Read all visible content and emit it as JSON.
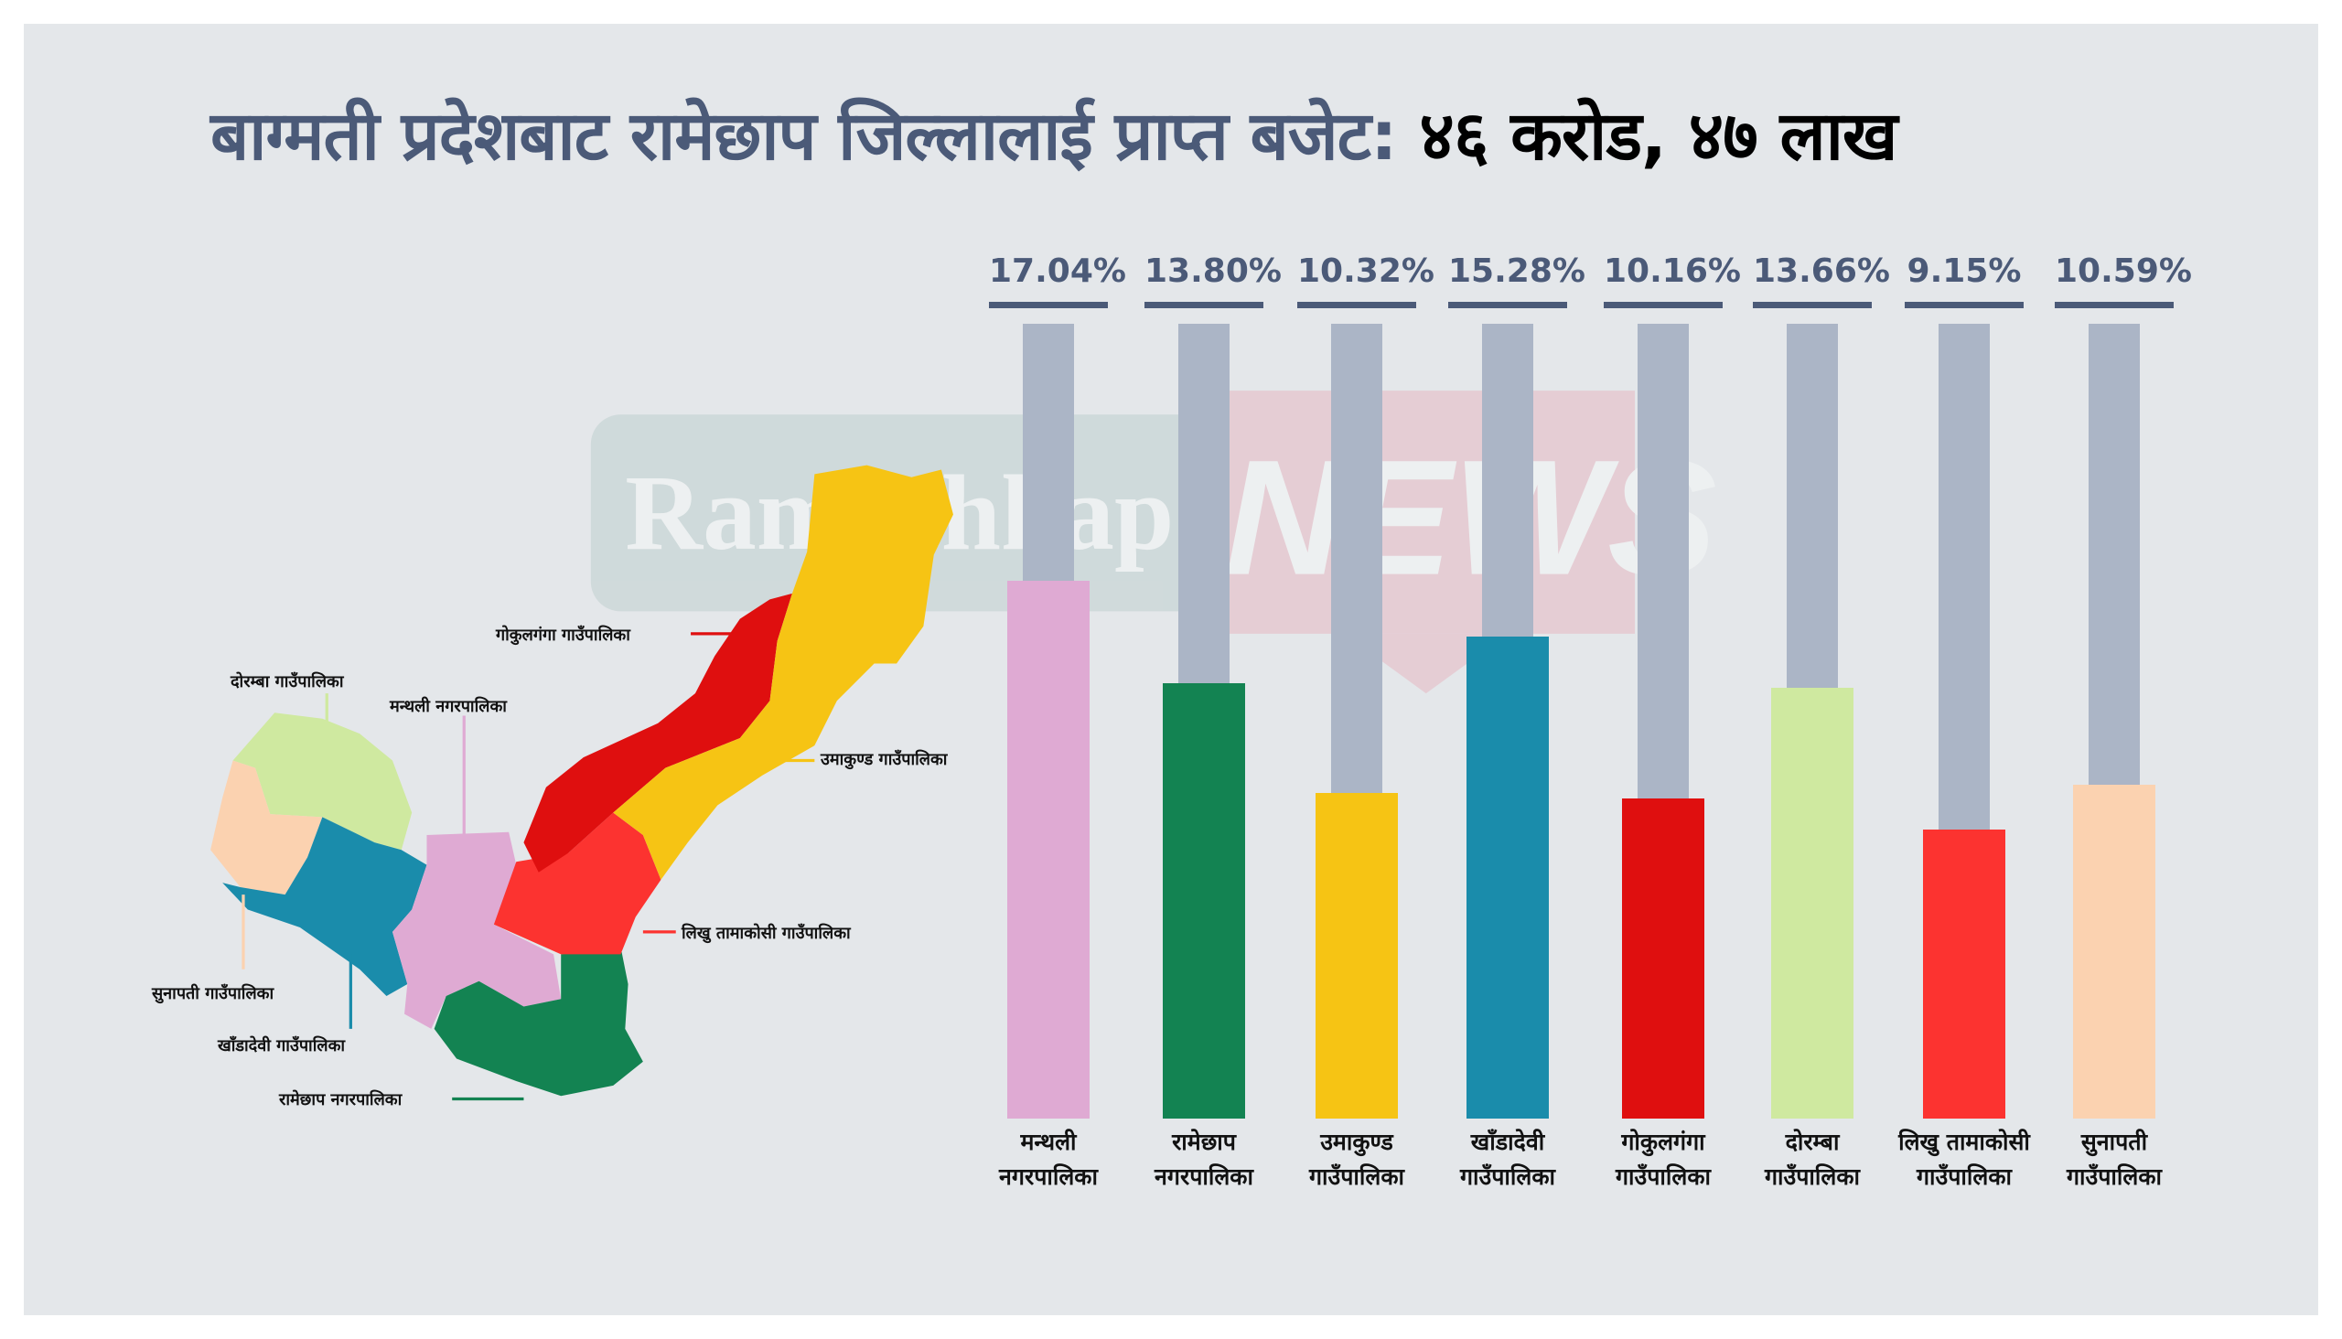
{
  "title": {
    "main": "बाग्मती प्रदेशबाट रामेछाप जिल्लालाई प्राप्त बजेट:",
    "amount": "४६ करोड, ४७ लाख"
  },
  "watermark": {
    "part1": "Ramechhap",
    "part2": "NEWS"
  },
  "chart_data": {
    "type": "bar",
    "title": "बाग्मती प्रदेशबाट रामेछाप जिल्लालाई प्राप्त बजेट: ४६ करोड, ४७ लाख",
    "categories": [
      {
        "line1": "मन्थली",
        "line2": "नगरपालिका"
      },
      {
        "line1": "रामेछाप",
        "line2": "नगरपालिका"
      },
      {
        "line1": "उमाकुण्ड",
        "line2": "गाउँपालिका"
      },
      {
        "line1": "खाँडादेवी",
        "line2": "गाउँपालिका"
      },
      {
        "line1": "गोकुलगंगा",
        "line2": "गाउँपालिका"
      },
      {
        "line1": "दोरम्बा",
        "line2": "गाउँपालिका"
      },
      {
        "line1": "लिखु तामाकोसी",
        "line2": "गाउँपालिका"
      },
      {
        "line1": "सुनापती",
        "line2": "गाउँपालिका"
      }
    ],
    "values": [
      17.04,
      13.8,
      10.32,
      15.28,
      10.16,
      13.66,
      9.15,
      10.59
    ],
    "labels": [
      "17.04%",
      "13.80%",
      "10.32%",
      "15.28%",
      "10.16%",
      "13.66%",
      "9.15%",
      "10.59%"
    ],
    "colors": [
      "#dfaad3",
      "#138352",
      "#f6c414",
      "#1a8cab",
      "#df0f0f",
      "#cfe9a0",
      "#fc3330",
      "#fbd2b0"
    ],
    "ymax": 25.2,
    "unit": "%"
  },
  "map_labels": {
    "gokulganga": "गोकुलगंगा गाउँपालिका",
    "doramba": "दोरम्बा गाउँपालिका",
    "manthali": "मन्थली नगरपालिका",
    "umakunda": "उमाकुण्ड गाउँपालिका",
    "likhu": "लिखु तामाकोसी गाउँपालिका",
    "sunapati": "सुनापती गाउँपालिका",
    "khadadevi": "खाँडादेवी गाउँपालिका",
    "ramechhap": "रामेछाप नगरपालिका"
  }
}
